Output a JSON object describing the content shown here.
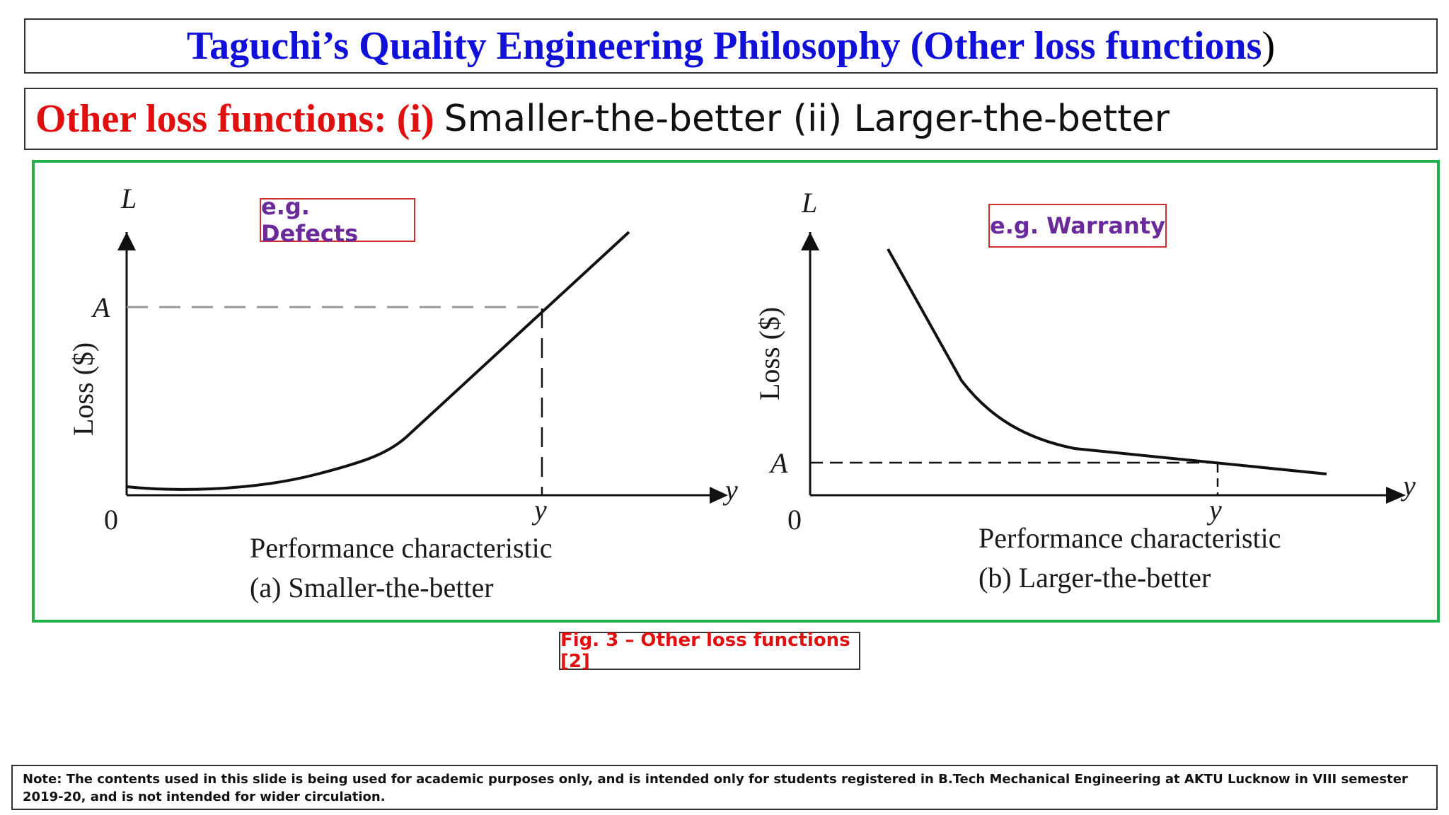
{
  "title": {
    "main": "Taguchi’s Quality Engineering Philosophy (Other loss functions",
    "close_paren": ")"
  },
  "subtitle": {
    "red_part": "Other loss functions: (i)",
    "black_part": "Smaller-the-better (ii) Larger-the-better"
  },
  "figure": {
    "panel_a": {
      "y_axis_symbol": "L",
      "y_axis_label": "Loss ($)",
      "threshold_label": "A",
      "origin_label": "0",
      "x_axis_symbol": "y",
      "x_tick_label": "y",
      "x_axis_caption": "Performance characteristic",
      "panel_caption": "(a) Smaller-the-better",
      "example": "e.g. Defects"
    },
    "panel_b": {
      "y_axis_symbol": "L",
      "y_axis_label": "Loss ($)",
      "threshold_label": "A",
      "origin_label": "0",
      "x_axis_symbol": "y",
      "x_tick_label": "y",
      "x_axis_caption": "Performance characteristic",
      "panel_caption": "(b) Larger-the-better",
      "example": "e.g. Warranty"
    }
  },
  "caption": "Fig. 3 – Other loss functions [2]",
  "note": "Note: The contents used in this slide is being used for academic purposes only, and is intended only for students registered in  B.Tech Mechanical Engineering at AKTU Lucknow in VIII semester 2019-20, and is not intended for wider circulation.",
  "colors": {
    "title_blue": "#1010d8",
    "emphasis_red": "#e01010",
    "frame_green": "#22b04a",
    "example_purple": "#6a2a9a"
  }
}
